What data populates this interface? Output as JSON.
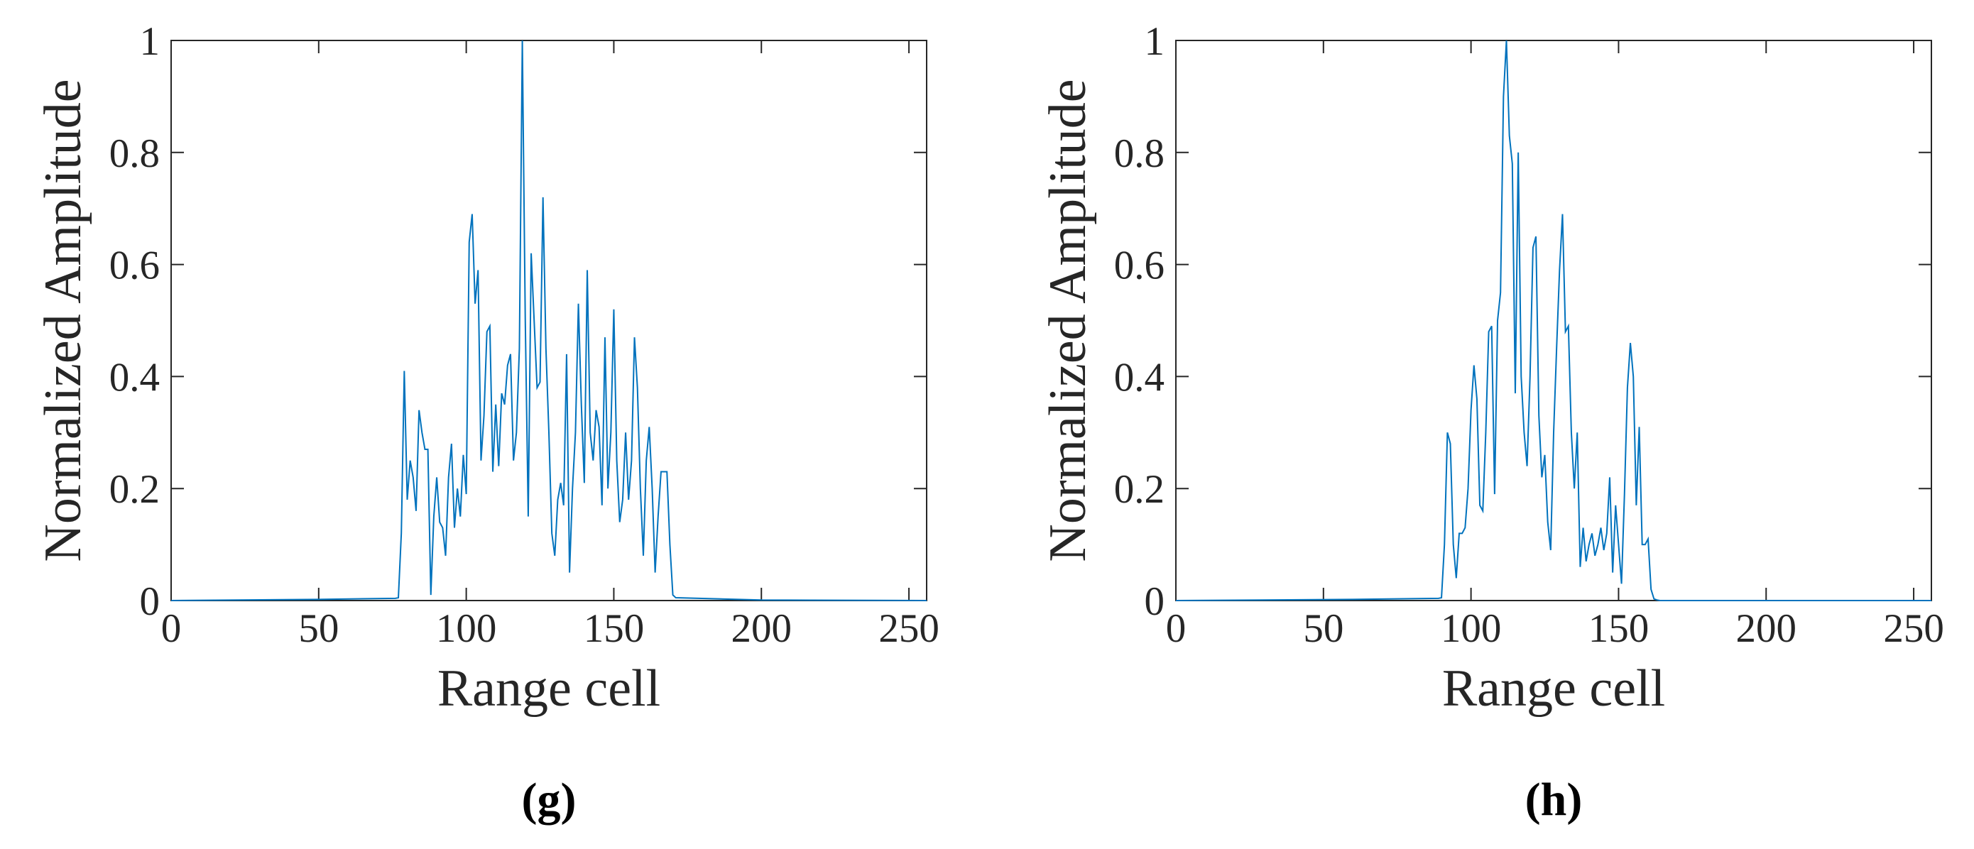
{
  "chart_data": [
    {
      "type": "line",
      "caption": "(g)",
      "xlabel": "Range cell",
      "ylabel": "Normalized Amplitude",
      "xlim": [
        0,
        256
      ],
      "ylim": [
        0,
        1
      ],
      "xticks": [
        0,
        50,
        100,
        150,
        200,
        250
      ],
      "yticks": [
        0,
        0.2,
        0.4,
        0.6,
        0.8,
        1
      ],
      "series": [
        {
          "color": "#0072bd",
          "x": [
            0,
            50,
            76,
            77,
            78,
            79,
            80,
            81,
            82,
            83,
            84,
            85,
            86,
            87,
            88,
            89,
            90,
            91,
            92,
            93,
            94,
            95,
            96,
            97,
            98,
            99,
            100,
            101,
            102,
            103,
            104,
            105,
            106,
            107,
            108,
            109,
            110,
            111,
            112,
            113,
            114,
            115,
            116,
            117,
            118,
            119,
            120,
            121,
            122,
            123,
            124,
            125,
            126,
            127,
            128,
            129,
            130,
            131,
            132,
            133,
            134,
            135,
            136,
            137,
            138,
            139,
            140,
            141,
            142,
            143,
            144,
            145,
            146,
            147,
            148,
            149,
            150,
            151,
            152,
            153,
            154,
            155,
            156,
            157,
            158,
            159,
            160,
            161,
            162,
            163,
            164,
            165,
            166,
            167,
            168,
            169,
            170,
            171,
            200,
            256
          ],
          "values": [
            0,
            0.002,
            0.004,
            0.005,
            0.12,
            0.41,
            0.18,
            0.25,
            0.22,
            0.16,
            0.34,
            0.3,
            0.27,
            0.27,
            0.01,
            0.15,
            0.22,
            0.14,
            0.13,
            0.08,
            0.22,
            0.28,
            0.13,
            0.2,
            0.15,
            0.26,
            0.19,
            0.64,
            0.69,
            0.53,
            0.59,
            0.25,
            0.33,
            0.48,
            0.49,
            0.23,
            0.35,
            0.24,
            0.37,
            0.35,
            0.42,
            0.44,
            0.25,
            0.3,
            0.45,
            1.0,
            0.5,
            0.15,
            0.62,
            0.5,
            0.38,
            0.39,
            0.72,
            0.45,
            0.3,
            0.12,
            0.08,
            0.18,
            0.21,
            0.17,
            0.44,
            0.05,
            0.2,
            0.3,
            0.53,
            0.35,
            0.21,
            0.59,
            0.3,
            0.25,
            0.34,
            0.31,
            0.17,
            0.47,
            0.2,
            0.3,
            0.52,
            0.25,
            0.14,
            0.18,
            0.3,
            0.18,
            0.25,
            0.47,
            0.38,
            0.2,
            0.08,
            0.25,
            0.31,
            0.2,
            0.05,
            0.15,
            0.23,
            0.23,
            0.23,
            0.1,
            0.01,
            0.005,
            0.001,
            0
          ]
        }
      ]
    },
    {
      "type": "line",
      "caption": "(h)",
      "xlabel": "Range cell",
      "ylabel": "Normalized Amplitude",
      "xlim": [
        0,
        256
      ],
      "ylim": [
        0,
        1
      ],
      "xticks": [
        0,
        50,
        100,
        150,
        200,
        250
      ],
      "yticks": [
        0,
        0.2,
        0.4,
        0.6,
        0.8,
        1
      ],
      "series": [
        {
          "color": "#0072bd",
          "x": [
            0,
            60,
            89,
            90,
            91,
            92,
            93,
            94,
            95,
            96,
            97,
            98,
            99,
            100,
            101,
            102,
            103,
            104,
            105,
            106,
            107,
            108,
            109,
            110,
            111,
            112,
            113,
            114,
            115,
            116,
            117,
            118,
            119,
            120,
            121,
            122,
            123,
            124,
            125,
            126,
            127,
            128,
            129,
            130,
            131,
            132,
            133,
            134,
            135,
            136,
            137,
            138,
            139,
            140,
            141,
            142,
            143,
            144,
            145,
            146,
            147,
            148,
            149,
            150,
            151,
            152,
            153,
            154,
            155,
            156,
            157,
            158,
            159,
            160,
            161,
            162,
            163,
            164,
            256
          ],
          "values": [
            0,
            0.002,
            0.004,
            0.005,
            0.1,
            0.3,
            0.28,
            0.1,
            0.04,
            0.12,
            0.12,
            0.13,
            0.2,
            0.34,
            0.42,
            0.36,
            0.17,
            0.16,
            0.3,
            0.48,
            0.49,
            0.19,
            0.5,
            0.55,
            0.9,
            1.0,
            0.83,
            0.78,
            0.37,
            0.8,
            0.4,
            0.3,
            0.24,
            0.4,
            0.63,
            0.65,
            0.33,
            0.22,
            0.26,
            0.14,
            0.09,
            0.3,
            0.45,
            0.59,
            0.69,
            0.48,
            0.49,
            0.3,
            0.2,
            0.3,
            0.06,
            0.13,
            0.07,
            0.1,
            0.12,
            0.08,
            0.1,
            0.13,
            0.09,
            0.12,
            0.22,
            0.05,
            0.17,
            0.1,
            0.03,
            0.19,
            0.38,
            0.46,
            0.4,
            0.17,
            0.31,
            0.1,
            0.1,
            0.11,
            0.02,
            0.003,
            0.001,
            0,
            0
          ]
        }
      ]
    }
  ]
}
